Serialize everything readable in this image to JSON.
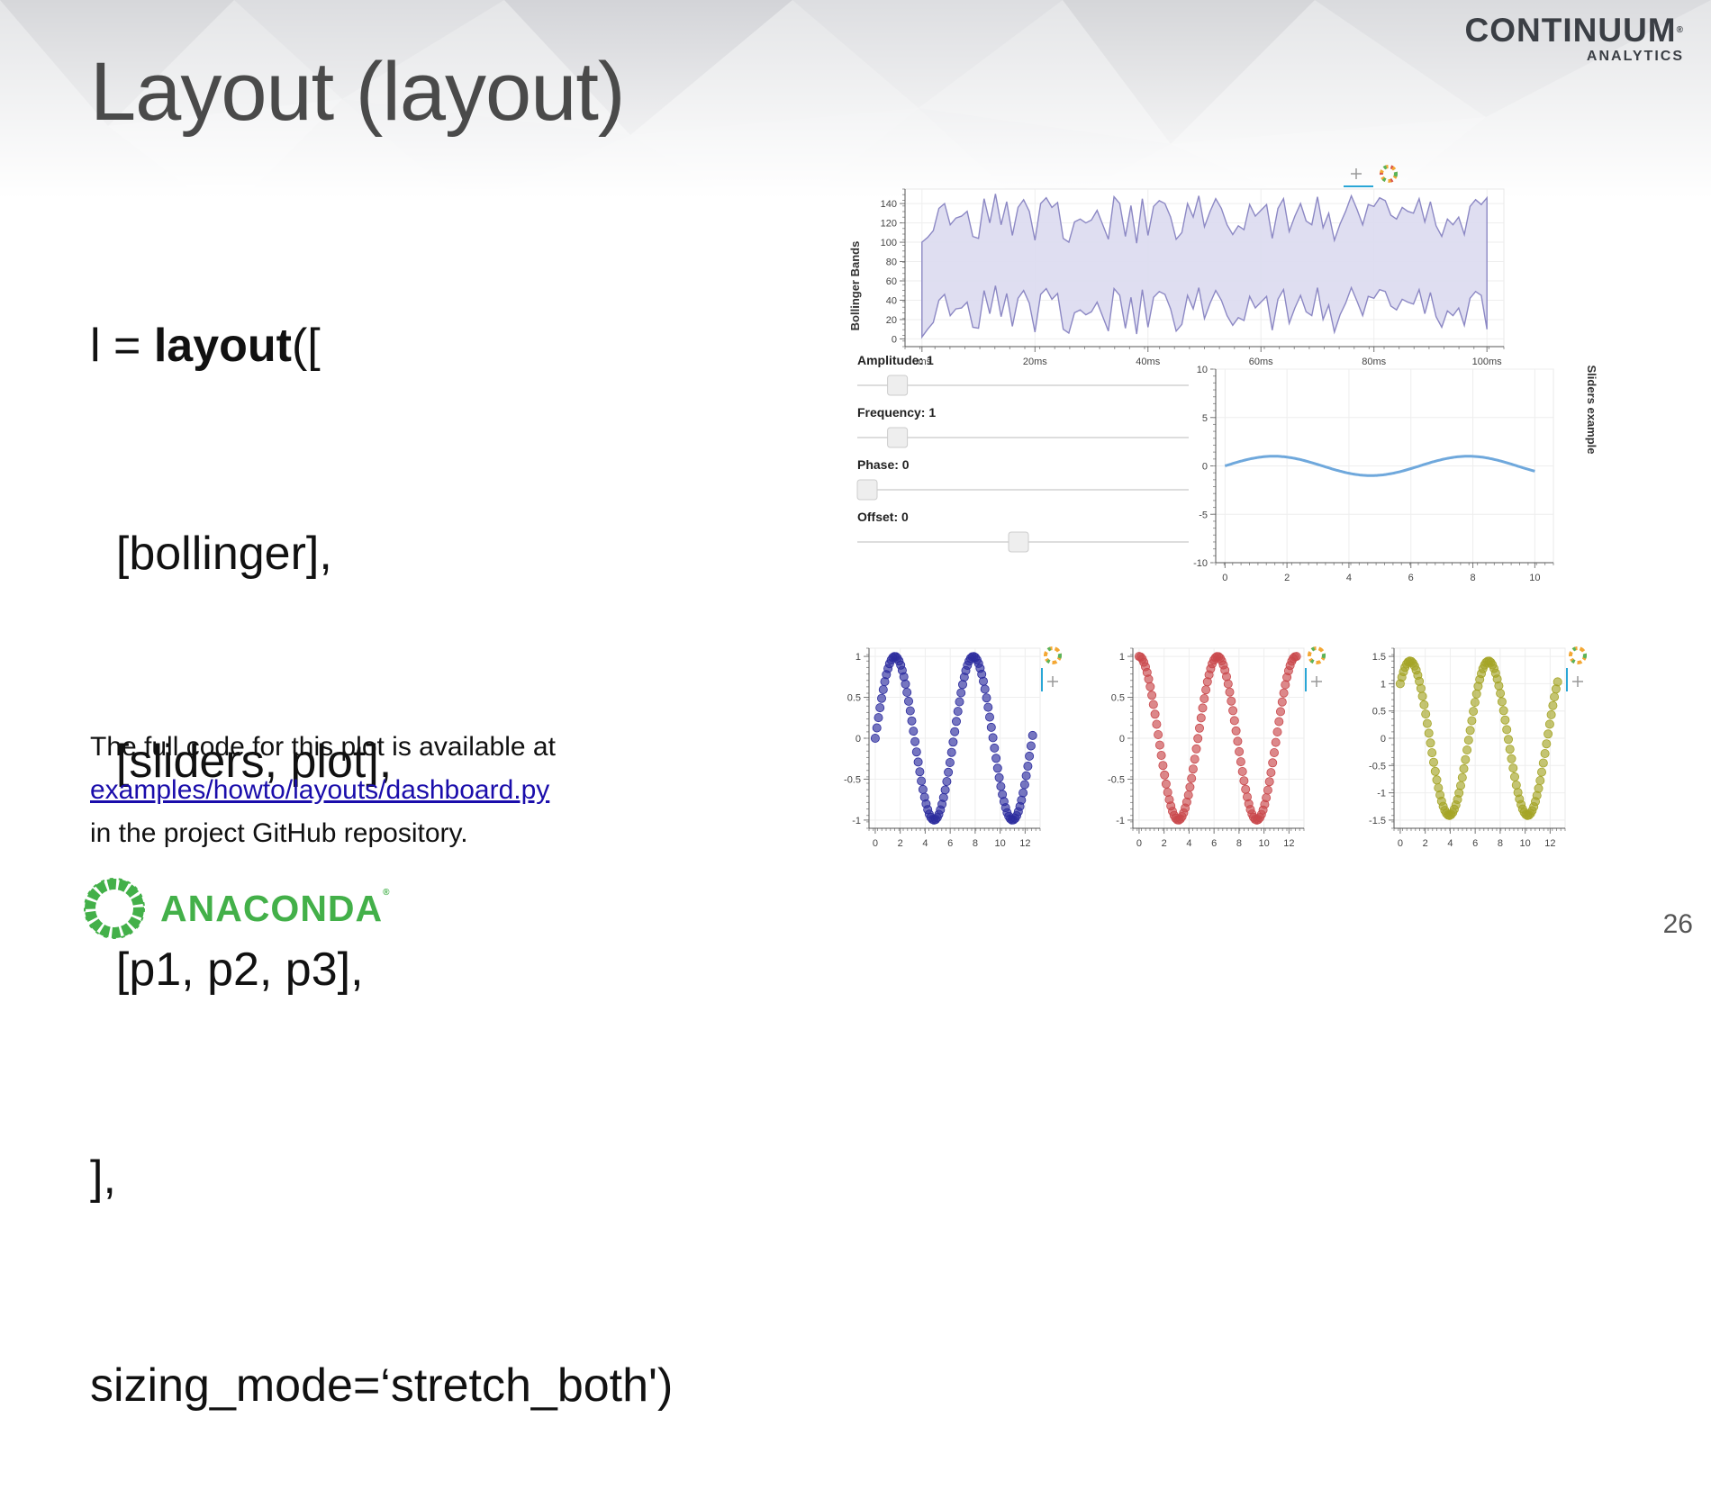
{
  "slide": {
    "title": "Layout (layout)",
    "page_number": "26"
  },
  "brand": {
    "name": "CONTINUUM",
    "sub": "ANALYTICS",
    "mark": "®"
  },
  "code": {
    "line1_pre": "l = ",
    "line1_bold": "layout",
    "line1_post": "([",
    "line2": "  [bollinger],",
    "line3": "  [sliders, plot],",
    "line4": "  [p1, p2, p3],",
    "line5": "],",
    "line6": "sizing_mode=‘stretch_both')"
  },
  "note": {
    "line1": "The full code for this plot is available at",
    "link": "examples/howto/layouts/dashboard.py ",
    "line3": "in the project GitHub repository."
  },
  "footer_logo": {
    "text": "ANACONDA",
    "mark": "®"
  },
  "colors": {
    "band_fill": "#dcdaf0",
    "band_stroke": "#8c88c4",
    "sine_line": "#6fa8dc",
    "p1": "#2c2c9e",
    "p2": "#c9484c",
    "p3": "#a5a526",
    "anaconda_green": "#43b049"
  },
  "sliders": [
    {
      "label": "Amplitude: 1",
      "fraction": 0.1
    },
    {
      "label": "Frequency: 1",
      "fraction": 0.1
    },
    {
      "label": "Phase: 0",
      "fraction": 0.0
    },
    {
      "label": "Offset: 0",
      "fraction": 0.5
    }
  ],
  "chart_data": [
    {
      "type": "area",
      "ylabel": "Bollinger Bands",
      "xlabel": "",
      "x_ticks": [
        "0ms",
        "20ms",
        "40ms",
        "60ms",
        "80ms",
        "100ms"
      ],
      "y_ticks": [
        "0",
        "20",
        "40",
        "60",
        "80",
        "100",
        "120",
        "140"
      ],
      "xlim": [
        0,
        100
      ],
      "ylim": [
        0,
        150
      ],
      "series": [
        {
          "values_upper": [
            100,
            105,
            112,
            135,
            140,
            118,
            125,
            127,
            132,
            106,
            104,
            145,
            120,
            150,
            118,
            142,
            107,
            136,
            144,
            132,
            102,
            140,
            146,
            136,
            141,
            104,
            100,
            121,
            124,
            120,
            123,
            133,
            118,
            103,
            147,
            140,
            106,
            138,
            99,
            145,
            107,
            137,
            143,
            140,
            126,
            103,
            110,
            140,
            126,
            148,
            116,
            132,
            145,
            135,
            118,
            108,
            117,
            113,
            139,
            127,
            133,
            139,
            104,
            135,
            145,
            111,
            127,
            140,
            122,
            118,
            147,
            115,
            130,
            102,
            119,
            132,
            148,
            134,
            118,
            139,
            137,
            146,
            143,
            128,
            124,
            136,
            132,
            130,
            145,
            121,
            142,
            117,
            106,
            124,
            118,
            126,
            108,
            137,
            144,
            139,
            146
          ],
          "values_lower": [
            2,
            10,
            17,
            40,
            46,
            24,
            31,
            32,
            38,
            12,
            11,
            50,
            26,
            55,
            23,
            47,
            13,
            42,
            50,
            37,
            7,
            46,
            52,
            41,
            47,
            10,
            6,
            27,
            30,
            25,
            28,
            38,
            23,
            8,
            52,
            45,
            11,
            43,
            5,
            51,
            12,
            43,
            49,
            46,
            31,
            8,
            15,
            45,
            31,
            53,
            21,
            37,
            50,
            40,
            24,
            14,
            22,
            19,
            44,
            32,
            38,
            44,
            9,
            41,
            51,
            16,
            32,
            45,
            28,
            24,
            53,
            20,
            35,
            7,
            25,
            37,
            53,
            39,
            24,
            44,
            42,
            51,
            49,
            34,
            30,
            41,
            38,
            36,
            51,
            26,
            48,
            23,
            12,
            29,
            24,
            32,
            14,
            42,
            49,
            45,
            10
          ]
        }
      ]
    },
    {
      "type": "line",
      "title": "Sliders example",
      "xlim": [
        0,
        10.5
      ],
      "ylim": [
        -10,
        10
      ],
      "x_ticks": [
        "0",
        "2",
        "4",
        "6",
        "8",
        "10"
      ],
      "y_ticks": [
        "-10",
        "-5",
        "0",
        "5",
        "10"
      ],
      "series": [
        {
          "amplitude": 1,
          "frequency": 1,
          "phase": 0,
          "offset": 0
        }
      ]
    },
    {
      "type": "scatter",
      "xlim": [
        0,
        12.5
      ],
      "ylim": [
        -1,
        1
      ],
      "x_ticks": [
        "0",
        "2",
        "4",
        "6",
        "8",
        "10",
        "12"
      ],
      "y_ticks": [
        "-1",
        "-0.5",
        "0",
        "0.5",
        "1"
      ],
      "series": [
        {
          "function": "sin(x)",
          "x_start": 0,
          "x_end": 12.6,
          "points": 100
        }
      ]
    },
    {
      "type": "scatter",
      "xlim": [
        0,
        12.5
      ],
      "ylim": [
        -1,
        1
      ],
      "x_ticks": [
        "0",
        "2",
        "4",
        "6",
        "8",
        "10",
        "12"
      ],
      "y_ticks": [
        "-1",
        "-0.5",
        "0",
        "0.5",
        "1"
      ],
      "series": [
        {
          "function": "cos(x)",
          "x_start": 0,
          "x_end": 12.6,
          "points": 100
        }
      ]
    },
    {
      "type": "scatter",
      "xlim": [
        0,
        12.5
      ],
      "ylim": [
        -1.5,
        1.5
      ],
      "x_ticks": [
        "0",
        "2",
        "4",
        "6",
        "8",
        "10",
        "12"
      ],
      "y_ticks": [
        "-1.5",
        "-1",
        "-0.5",
        "0",
        "0.5",
        "1",
        "1.5"
      ],
      "series": [
        {
          "function": "sin(x)+cos(x)",
          "x_start": 0,
          "x_end": 12.6,
          "points": 100
        }
      ]
    }
  ]
}
